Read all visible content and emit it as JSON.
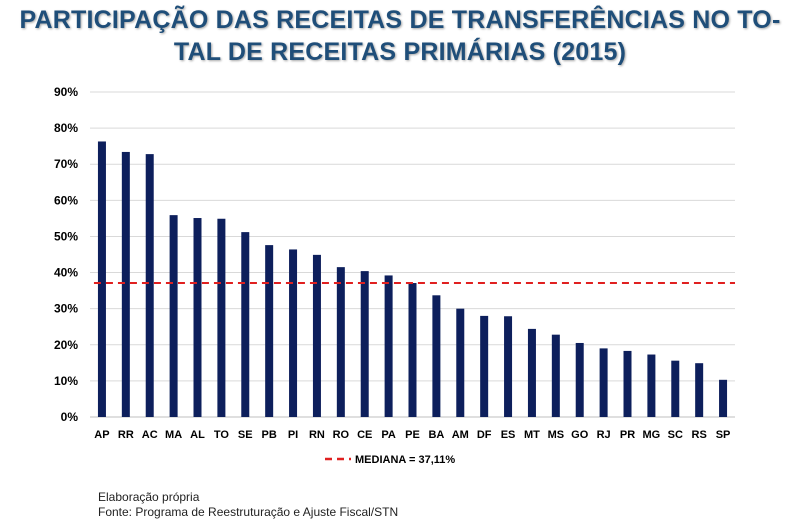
{
  "title_line1": "PARTICIPAÇÃO DAS RECEITAS DE TRANSFERÊNCIAS NO TO-",
  "title_line2": "TAL DE RECEITAS PRIMÁRIAS (2015)",
  "footer": {
    "line1": "Elaboração própria",
    "line2": "Fonte: Programa de Reestruturação e Ajuste Fiscal/STN"
  },
  "colors": {
    "bar": "#0d1f5c",
    "median_line": "#e02020",
    "title": "#1f4e79",
    "grid": "#d9d9d9"
  },
  "chart_data": {
    "type": "bar",
    "title": "PARTICIPAÇÃO DAS RECEITAS DE TRANSFERÊNCIAS NO TOTAL DE RECEITAS PRIMÁRIAS (2015)",
    "categories": [
      "AP",
      "RR",
      "AC",
      "MA",
      "AL",
      "TO",
      "SE",
      "PB",
      "PI",
      "RN",
      "RO",
      "CE",
      "PA",
      "PE",
      "BA",
      "AM",
      "DF",
      "ES",
      "MT",
      "MS",
      "GO",
      "RJ",
      "PR",
      "MG",
      "SC",
      "RS",
      "SP"
    ],
    "values": [
      76.3,
      73.4,
      72.8,
      55.9,
      55.1,
      54.9,
      51.2,
      47.6,
      46.4,
      44.9,
      41.5,
      40.4,
      39.2,
      37.1,
      33.7,
      30.0,
      28.0,
      27.9,
      24.4,
      22.8,
      20.5,
      19.0,
      18.3,
      17.3,
      15.6,
      14.9,
      10.3
    ],
    "y_ticks": [
      "0%",
      "10%",
      "20%",
      "30%",
      "40%",
      "50%",
      "60%",
      "70%",
      "80%",
      "90%"
    ],
    "ylim": [
      0,
      90
    ],
    "grid": true,
    "median": {
      "value": 37.11,
      "label": "MEDIANA = 37,11%"
    },
    "legend_position": "bottom"
  }
}
